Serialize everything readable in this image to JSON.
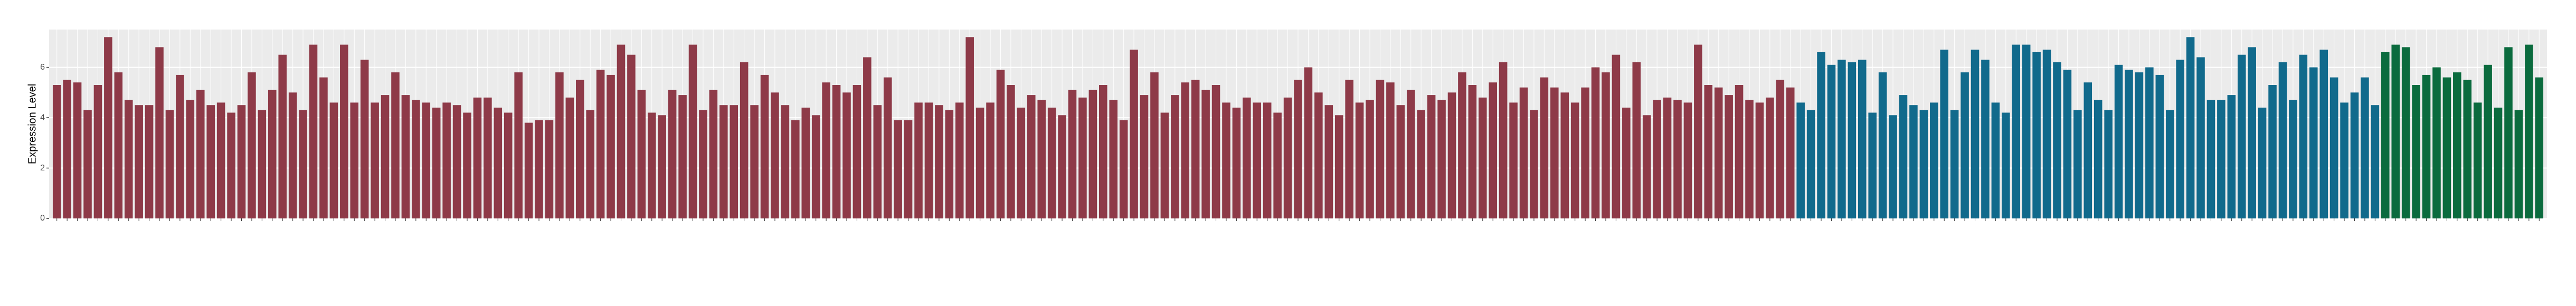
{
  "chart_data": {
    "type": "bar",
    "y_label": "Expression Level",
    "ylim": [
      0,
      7.5
    ],
    "yticks": [
      0,
      2,
      4,
      6
    ],
    "grid": true,
    "series": [
      {
        "color": "#8e3a48",
        "values": [
          5.3,
          5.5,
          5.4,
          4.3,
          5.3,
          7.2,
          5.8,
          4.7,
          4.5,
          4.5,
          6.8,
          4.3,
          5.7,
          4.7,
          5.1,
          4.5,
          4.6,
          4.2,
          4.5,
          5.8,
          4.3,
          5.1,
          6.5,
          5.0,
          4.3,
          6.9,
          5.6,
          4.6,
          6.9,
          4.6,
          6.3,
          4.6,
          4.9,
          5.8,
          4.9,
          4.7,
          4.6,
          4.4,
          4.6,
          4.5,
          4.2,
          4.8,
          4.8,
          4.4,
          4.2,
          5.8,
          3.8,
          3.9,
          3.9,
          5.8,
          4.8,
          5.5,
          4.3,
          5.9,
          5.7,
          6.9,
          6.5,
          5.1,
          4.2,
          4.1,
          5.1,
          4.9,
          6.9,
          4.3,
          5.1,
          4.5,
          4.5,
          6.2,
          4.5,
          5.7,
          5.0,
          4.5,
          3.9,
          4.4,
          4.1,
          5.4,
          5.3,
          5.0,
          5.3,
          6.4,
          4.5,
          5.6,
          3.9,
          3.9,
          4.6,
          4.6,
          4.5,
          4.3,
          4.6,
          7.2,
          4.4,
          4.6,
          5.9,
          5.3,
          4.4,
          4.9,
          4.7,
          4.4,
          4.1,
          5.1,
          4.8,
          5.1,
          5.3,
          4.7,
          3.9,
          6.7,
          4.9,
          5.8,
          4.2,
          4.9,
          5.4,
          5.5,
          5.1,
          5.3,
          4.6,
          4.4,
          4.8,
          4.6,
          4.6,
          4.2,
          4.8,
          5.5,
          6.0,
          5.0,
          4.5,
          4.1,
          5.5,
          4.6,
          4.7,
          5.5,
          5.4,
          4.5,
          5.1,
          4.3,
          4.9,
          4.7,
          5.0,
          5.8,
          5.3,
          4.8,
          5.4,
          6.2,
          4.6,
          5.2,
          4.3,
          5.6,
          5.2,
          5.0,
          4.6,
          5.2,
          6.0,
          5.8,
          6.5,
          4.4,
          6.2,
          4.1,
          4.7,
          4.8,
          4.7,
          4.6,
          6.9,
          5.3,
          5.2,
          4.9,
          5.3,
          4.7,
          4.6,
          4.8,
          5.5,
          5.2
        ]
      },
      {
        "color": "#116a8c",
        "values": [
          4.6,
          4.3,
          6.6,
          6.1,
          6.3,
          6.2,
          6.3,
          4.2,
          5.8,
          4.1,
          4.9,
          4.5,
          4.3,
          4.6,
          6.7,
          4.3,
          5.8,
          6.7,
          6.3,
          4.6,
          4.2,
          6.9,
          6.9,
          6.6,
          6.7,
          6.2,
          5.9,
          4.3,
          5.4,
          4.7,
          4.3,
          6.1,
          5.9,
          5.8,
          6.0,
          5.7,
          4.3,
          6.3,
          7.2,
          6.4,
          4.7,
          4.7,
          4.9,
          6.5,
          6.8,
          4.4,
          5.3,
          6.2,
          4.7,
          6.5,
          6.0,
          6.7,
          5.6,
          4.6,
          5.0,
          5.6,
          4.5
        ]
      },
      {
        "color": "#0b6b3e",
        "values": [
          6.6,
          6.9,
          6.8,
          5.3,
          5.7,
          6.0,
          5.6,
          5.8,
          5.5,
          4.6,
          6.1,
          4.4,
          6.8,
          4.3,
          6.9,
          5.6
        ]
      }
    ]
  }
}
